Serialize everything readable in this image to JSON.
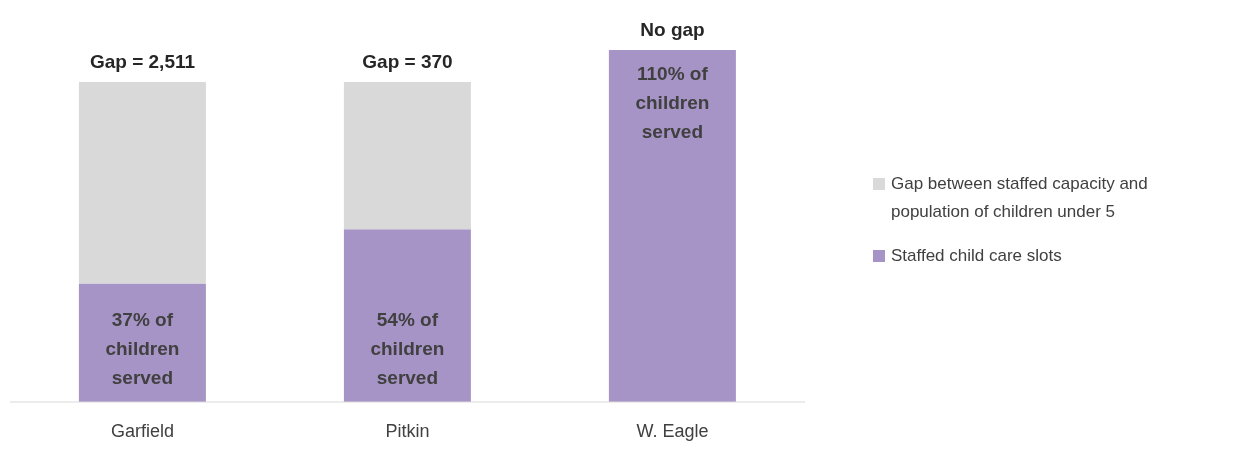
{
  "chart_data": {
    "type": "bar",
    "stacked": true,
    "ylim": [
      0,
      110
    ],
    "categories": [
      "Garfield",
      "Pitkin",
      "W. Eagle"
    ],
    "series": [
      {
        "name": "Staffed child care slots",
        "color": "#a794c6",
        "values": [
          37,
          54,
          110
        ],
        "value_labels": [
          "37% of children served",
          "54% of children served",
          "110% of children served"
        ]
      },
      {
        "name": "Gap between staffed capacity and population of children under 5",
        "color": "#d9d9d9",
        "values": [
          63,
          46,
          0
        ]
      }
    ],
    "annotations": [
      {
        "text": "Gap = 2,511",
        "x": "Garfield",
        "y": 100
      },
      {
        "text": "Gap = 370",
        "x": "Pitkin",
        "y": 100
      },
      {
        "text": "No gap",
        "x": "W. Eagle",
        "y": 110
      }
    ],
    "legend": "right",
    "grid": false
  }
}
